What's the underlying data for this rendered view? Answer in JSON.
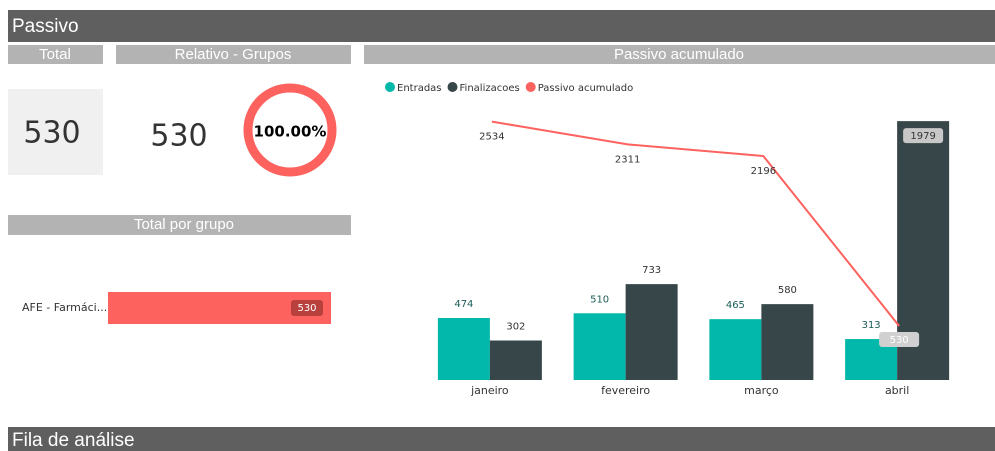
{
  "header": {
    "title": "Passivo"
  },
  "cards": {
    "total": {
      "title": "Total",
      "value": 530
    },
    "relativo": {
      "title": "Relativo - Grupos",
      "value": 530,
      "share": 100,
      "share_label": "100.00%"
    }
  },
  "chart_data": [
    {
      "type": "hbar",
      "title": "Total por grupo",
      "categories": [
        "AFE - Farmáci..."
      ],
      "values": [
        530
      ],
      "color": "#fd625e",
      "xlim": [
        0,
        530
      ]
    },
    {
      "type": "combo",
      "title": "Passivo acumulado",
      "categories": [
        "janeiro",
        "fevereiro",
        "março",
        "abril"
      ],
      "series": [
        {
          "name": "Entradas",
          "color": "#01b8aa",
          "values": [
            474,
            510,
            465,
            313
          ]
        },
        {
          "name": "Finalizacoes",
          "color": "#374649",
          "values": [
            302,
            733,
            580,
            1979
          ]
        },
        {
          "name": "Passivo acumulado",
          "color": "#fd625e",
          "values": [
            2534,
            2311,
            2196,
            530
          ],
          "axis": "y2"
        }
      ],
      "ylim": [
        0,
        1980
      ],
      "y2lim": [
        0,
        2540
      ],
      "legend": "top-left"
    }
  ],
  "footer": {
    "title": "Fila de análise"
  }
}
